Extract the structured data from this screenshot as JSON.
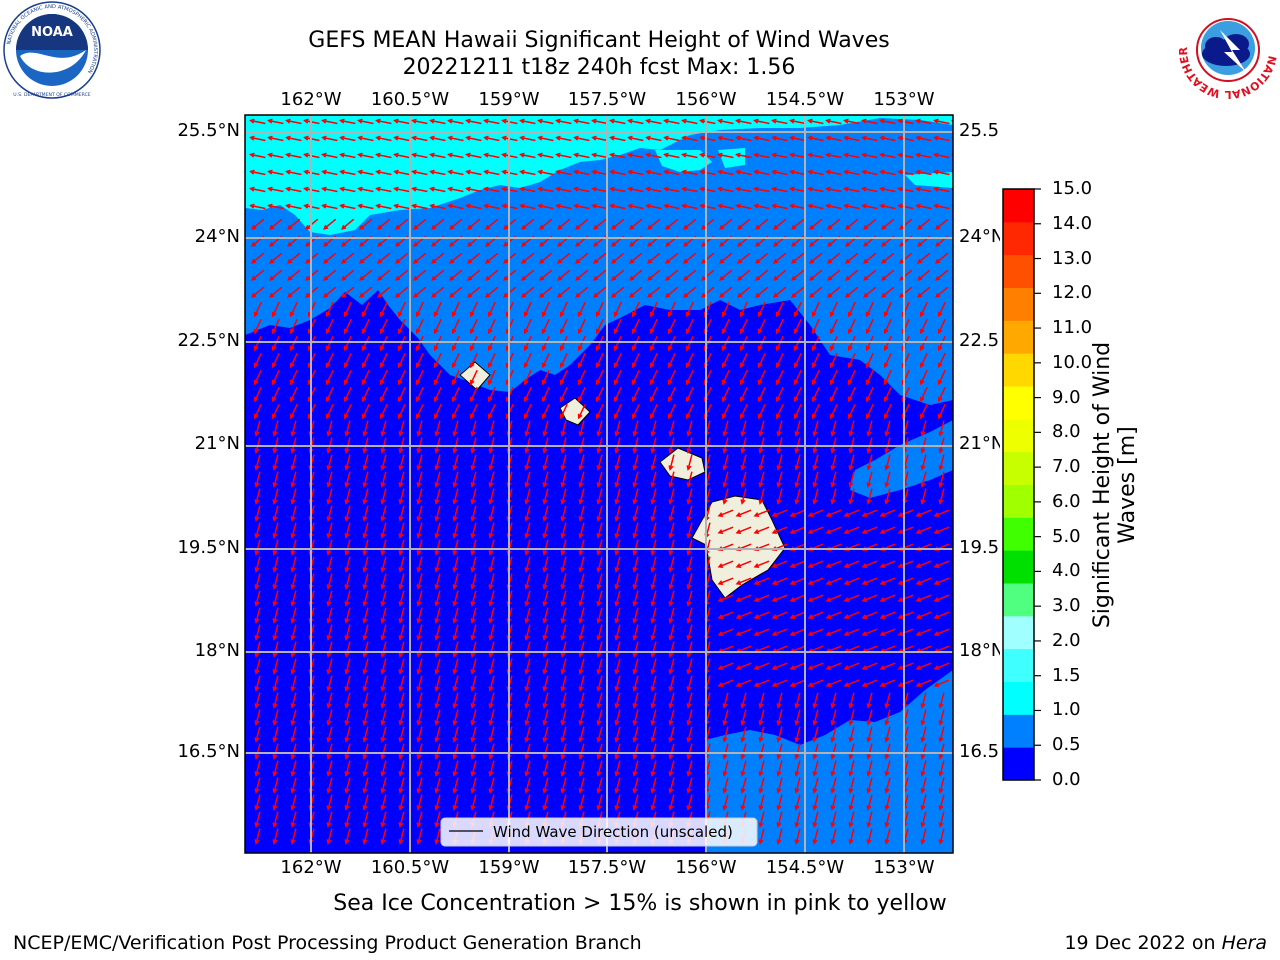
{
  "header": {
    "title_line1": "GEFS MEAN Hawaii Significant Height of Wind Waves",
    "title_line2": "20221211 t18z 240h fcst   Max: 1.56"
  },
  "logos": {
    "left": {
      "name": "NOAA",
      "ring_text": "NATIONAL OCEANIC AND ATMOSPHERIC ADMINISTRATION",
      "bottom_text": "U.S. DEPARTMENT OF COMMERCE"
    },
    "right": {
      "ring_text": "NATIONAL WEATHER SERVICE"
    }
  },
  "map": {
    "lon_labels": [
      "162°W",
      "160.5°W",
      "159°W",
      "157.5°W",
      "156°W",
      "154.5°W",
      "153°W"
    ],
    "lat_labels": [
      "25.5°N",
      "24°N",
      "22.5°N",
      "21°N",
      "19.5°N",
      "18°N",
      "16.5°N"
    ],
    "legend_label": "Wind Wave Direction (unscaled)",
    "colors": {
      "ocean_low": "#0000ff",
      "ocean_mid": "#0080ff",
      "ocean_high": "#00ffff",
      "land": "#f0eedc",
      "arrows": "#ff0000",
      "grid": "#b3b3b3"
    }
  },
  "colorbar": {
    "label_line1": "Significant Height of Wind",
    "label_line2": "Waves [m]",
    "ticks": [
      "15.0",
      "14.0",
      "13.0",
      "12.0",
      "11.0",
      "10.0",
      "9.0",
      "8.0",
      "7.0",
      "6.0",
      "5.0",
      "4.0",
      "3.0",
      "2.0",
      "1.5",
      "1.0",
      "0.5",
      "0.0"
    ],
    "colors_bottom_to_top": [
      "#0000ff",
      "#0080ff",
      "#00ffff",
      "#40ffff",
      "#a0ffff",
      "#50ff80",
      "#00e000",
      "#40ff00",
      "#a0ff00",
      "#c8ff00",
      "#eeff00",
      "#ffff00",
      "#ffd800",
      "#ffa800",
      "#ff8000",
      "#ff5000",
      "#ff2800",
      "#ff0000"
    ]
  },
  "note": "Sea Ice Concentration > 15% is shown in pink to yellow",
  "footer": {
    "left": "NCEP/EMC/Verification Post Processing Product Generation Branch",
    "right_date": "19 Dec 2022 on ",
    "right_host": "Hera"
  }
}
